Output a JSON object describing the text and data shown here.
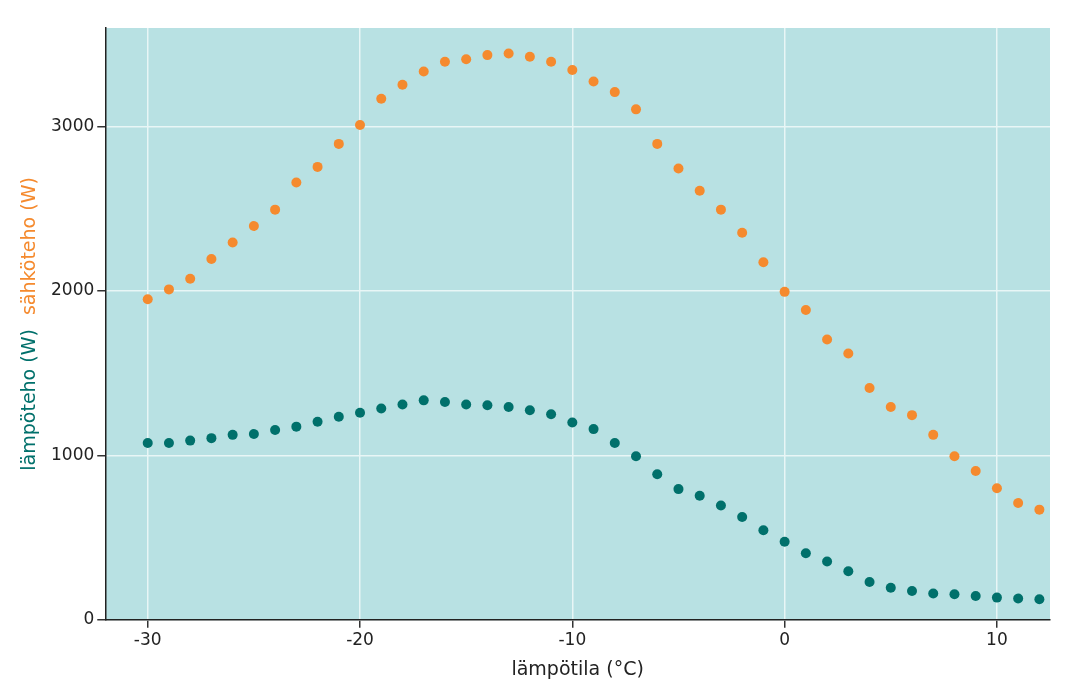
{
  "chart_data": {
    "type": "scatter",
    "xlabel": "lämpötila (°C)",
    "x": [
      -30,
      -29,
      -28,
      -27,
      -26,
      -25,
      -24,
      -23,
      -22,
      -21,
      -20,
      -19,
      -18,
      -17,
      -16,
      -15,
      -14,
      -13,
      -12,
      -11,
      -10,
      -9,
      -8,
      -7,
      -6,
      -5,
      -4,
      -3,
      -2,
      -1,
      0,
      1,
      2,
      3,
      4,
      5,
      6,
      7,
      8,
      9,
      10,
      11,
      12
    ],
    "series": [
      {
        "name": "lämpöteho (W)",
        "color": "#00706b",
        "values": [
          1075,
          1075,
          1090,
          1105,
          1125,
          1130,
          1155,
          1175,
          1205,
          1235,
          1260,
          1285,
          1310,
          1335,
          1325,
          1310,
          1305,
          1295,
          1275,
          1250,
          1200,
          1160,
          1075,
          995,
          885,
          795,
          755,
          695,
          625,
          545,
          475,
          405,
          355,
          295,
          230,
          195,
          175,
          160,
          155,
          145,
          135,
          130,
          125
        ]
      },
      {
        "name": "sähköteho (W)",
        "color": "#f58a2e",
        "values": [
          1950,
          2010,
          2075,
          2195,
          2295,
          2395,
          2495,
          2660,
          2755,
          2895,
          3010,
          3170,
          3255,
          3335,
          3395,
          3410,
          3435,
          3445,
          3425,
          3395,
          3345,
          3275,
          3210,
          3105,
          2895,
          2745,
          2610,
          2495,
          2355,
          2175,
          1995,
          1885,
          1705,
          1620,
          1410,
          1295,
          1245,
          1125,
          995,
          905,
          800,
          710,
          670
        ]
      }
    ],
    "xlim": [
      -32,
      12.5
    ],
    "xticks": [
      -30,
      -20,
      -10,
      0,
      10
    ],
    "ylim": [
      0,
      3600
    ],
    "yticks": [
      0,
      1000,
      2000,
      3000
    ],
    "grid": true,
    "legend": false,
    "marker": "circle"
  }
}
